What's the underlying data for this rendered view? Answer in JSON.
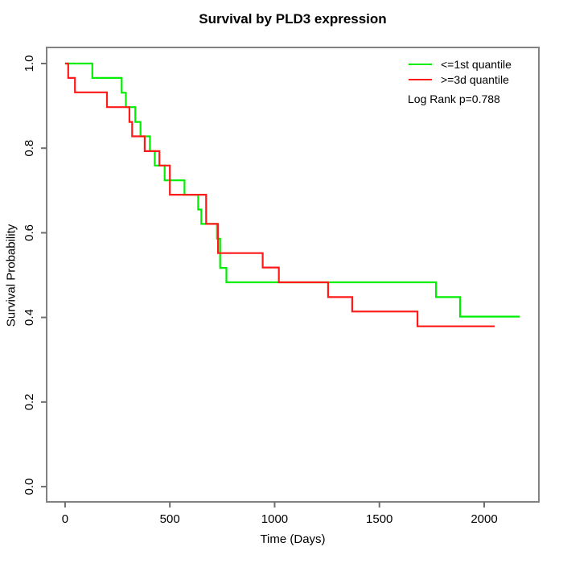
{
  "chart_data": {
    "type": "line",
    "subtype": "kaplan-meier-step",
    "title": "Survival by PLD3 expression",
    "xlabel": "Time (Days)",
    "ylabel": "Survival Probability",
    "xlim": [
      -88,
      2261
    ],
    "ylim": [
      -0.036,
      1.038
    ],
    "x_ticks": [
      0,
      500,
      1000,
      1500,
      2000
    ],
    "x_tick_labels": [
      "0",
      "500",
      "1000",
      "1500",
      "2000"
    ],
    "y_ticks": [
      0.0,
      0.2,
      0.4,
      0.6,
      0.8,
      1.0
    ],
    "y_tick_labels": [
      "0.0",
      "0.2",
      "0.4",
      "0.6",
      "0.8",
      "1.0"
    ],
    "grid": false,
    "legend_position": "top-right",
    "annotation": "Log Rank p=0.788",
    "axis_color": "#828282",
    "tick_color": "#6e6e6e",
    "text_color": "#000000",
    "series": [
      {
        "name": "<=1st quantile",
        "color": "#00ee00",
        "points": [
          [
            0,
            1.0
          ],
          [
            130,
            0.966
          ],
          [
            270,
            0.931
          ],
          [
            290,
            0.897
          ],
          [
            335,
            0.862
          ],
          [
            360,
            0.828
          ],
          [
            405,
            0.793
          ],
          [
            428,
            0.759
          ],
          [
            475,
            0.724
          ],
          [
            570,
            0.69
          ],
          [
            635,
            0.655
          ],
          [
            650,
            0.621
          ],
          [
            725,
            0.586
          ],
          [
            740,
            0.517
          ],
          [
            770,
            0.483
          ],
          [
            1770,
            0.448
          ],
          [
            1885,
            0.402
          ]
        ],
        "end_time": 2170
      },
      {
        "name": ">=3d quantile",
        "color": "#ff1a1a",
        "points": [
          [
            0,
            1.0
          ],
          [
            15,
            0.966
          ],
          [
            47,
            0.932
          ],
          [
            200,
            0.897
          ],
          [
            307,
            0.862
          ],
          [
            320,
            0.828
          ],
          [
            380,
            0.793
          ],
          [
            450,
            0.759
          ],
          [
            500,
            0.69
          ],
          [
            673,
            0.621
          ],
          [
            730,
            0.552
          ],
          [
            943,
            0.518
          ],
          [
            1020,
            0.483
          ],
          [
            1255,
            0.448
          ],
          [
            1370,
            0.414
          ],
          [
            1682,
            0.379
          ]
        ],
        "end_time": 2050
      }
    ]
  }
}
